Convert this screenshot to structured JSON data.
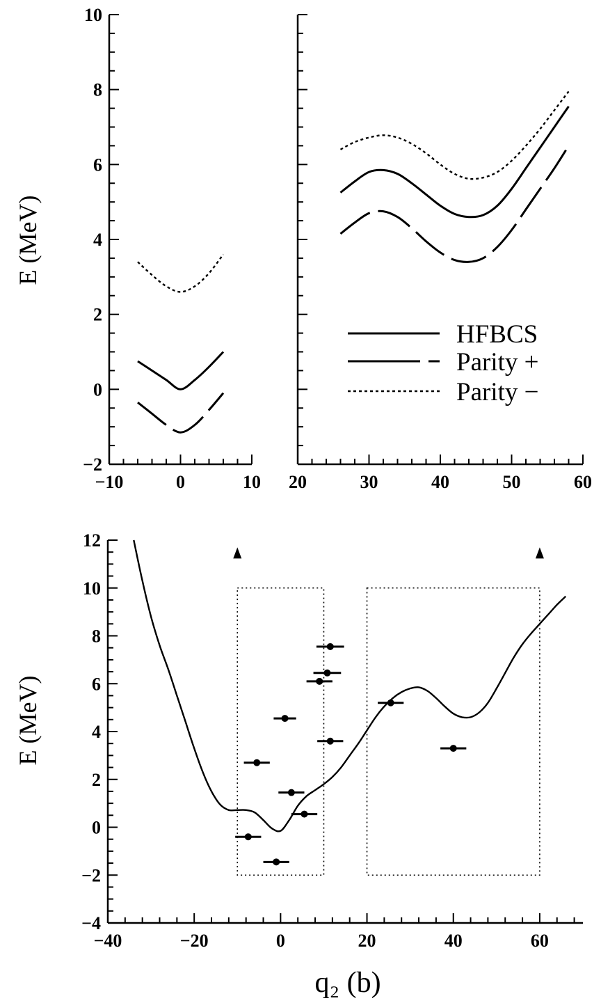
{
  "chart_data": [
    {
      "type": "line",
      "panel": "top-left",
      "ylabel": "E (MeV)",
      "xlim": [
        -10,
        10
      ],
      "ylim": [
        -2,
        10
      ],
      "xticks": [
        -10,
        0,
        10
      ],
      "xtick_labels": [
        "−10",
        "0",
        "10"
      ],
      "yticks": [
        -2,
        0,
        2,
        4,
        6,
        8,
        10
      ],
      "ytick_labels": [
        "−2",
        "0",
        "2",
        "4",
        "6",
        "8",
        "10"
      ],
      "series": [
        {
          "style": "dotted",
          "x": [
            -6,
            -4,
            -2,
            0,
            2,
            4,
            6
          ],
          "y": [
            3.4,
            3.05,
            2.75,
            2.6,
            2.75,
            3.1,
            3.6
          ]
        },
        {
          "style": "solid",
          "x": [
            -6,
            -4,
            -2,
            0,
            2,
            4,
            6
          ],
          "y": [
            0.75,
            0.5,
            0.25,
            0.0,
            0.25,
            0.6,
            1.0
          ]
        },
        {
          "style": "long-dash",
          "x": [
            -6,
            -4,
            -2,
            0,
            2,
            4,
            6
          ],
          "y": [
            -0.35,
            -0.65,
            -0.95,
            -1.15,
            -0.95,
            -0.55,
            -0.1
          ]
        }
      ]
    },
    {
      "type": "line",
      "panel": "top-right",
      "xlim": [
        20,
        60
      ],
      "ylim": [
        -2,
        10
      ],
      "xticks": [
        20,
        30,
        40,
        50,
        60
      ],
      "xtick_labels": [
        "20",
        "30",
        "40",
        "50",
        "60"
      ],
      "yticks": [
        -2,
        0,
        2,
        4,
        6,
        8,
        10
      ],
      "legend": [
        {
          "label": "HFBCS",
          "style": "solid"
        },
        {
          "label": "Parity +",
          "style": "long-dash"
        },
        {
          "label": "Parity −",
          "style": "dotted"
        }
      ],
      "legend_position": "lower-right",
      "series": [
        {
          "style": "dotted",
          "x": [
            26,
            28,
            30,
            32,
            34,
            36,
            38,
            40,
            42,
            44,
            46,
            48,
            50,
            52,
            54,
            56,
            58
          ],
          "y": [
            6.4,
            6.6,
            6.72,
            6.78,
            6.72,
            6.55,
            6.3,
            6.0,
            5.75,
            5.62,
            5.65,
            5.8,
            6.1,
            6.5,
            6.95,
            7.45,
            7.95
          ]
        },
        {
          "style": "solid",
          "x": [
            26,
            28,
            30,
            32,
            34,
            36,
            38,
            40,
            42,
            44,
            46,
            48,
            50,
            52,
            54,
            56,
            58
          ],
          "y": [
            5.25,
            5.55,
            5.8,
            5.85,
            5.75,
            5.5,
            5.2,
            4.9,
            4.68,
            4.6,
            4.65,
            4.9,
            5.35,
            5.9,
            6.45,
            7.0,
            7.55
          ]
        },
        {
          "style": "long-dash",
          "x": [
            26,
            28,
            30,
            32,
            34,
            36,
            38,
            40,
            42,
            44,
            46,
            48,
            50,
            52,
            54,
            56,
            58
          ],
          "y": [
            4.15,
            4.45,
            4.7,
            4.75,
            4.6,
            4.3,
            3.95,
            3.65,
            3.45,
            3.4,
            3.5,
            3.8,
            4.25,
            4.8,
            5.35,
            5.9,
            6.5
          ]
        }
      ]
    },
    {
      "type": "line+scatter",
      "panel": "bottom",
      "xlabel": "q₂ (b)",
      "ylabel": "E (MeV)",
      "xlim": [
        -40,
        70
      ],
      "ylim": [
        -4,
        12
      ],
      "xticks": [
        -40,
        -20,
        0,
        20,
        40,
        60
      ],
      "xtick_labels": [
        "−40",
        "−20",
        "0",
        "20",
        "40",
        "60"
      ],
      "yticks": [
        -4,
        -2,
        0,
        2,
        4,
        6,
        8,
        10,
        12
      ],
      "ytick_labels": [
        "−4",
        "−2",
        "0",
        "2",
        "4",
        "6",
        "8",
        "10",
        "12"
      ],
      "curve": {
        "x": [
          -34,
          -32,
          -30,
          -28,
          -26,
          -24,
          -22,
          -20,
          -18,
          -16,
          -14,
          -12,
          -10,
          -8,
          -6,
          -4,
          -2,
          0,
          2,
          4,
          6,
          8,
          10,
          12,
          14,
          16,
          18,
          20,
          22,
          24,
          26,
          28,
          30,
          32,
          34,
          36,
          38,
          40,
          42,
          44,
          46,
          48,
          50,
          52,
          54,
          56,
          58,
          60,
          62,
          64,
          66
        ],
        "y": [
          12.0,
          10.3,
          8.8,
          7.6,
          6.6,
          5.5,
          4.4,
          3.3,
          2.3,
          1.5,
          0.95,
          0.72,
          0.72,
          0.72,
          0.62,
          0.3,
          -0.05,
          -0.15,
          0.3,
          0.9,
          1.3,
          1.55,
          1.8,
          2.1,
          2.5,
          3.0,
          3.5,
          4.05,
          4.6,
          5.05,
          5.4,
          5.65,
          5.8,
          5.85,
          5.7,
          5.4,
          5.05,
          4.75,
          4.6,
          4.6,
          4.8,
          5.2,
          5.8,
          6.45,
          7.1,
          7.65,
          8.1,
          8.5,
          8.9,
          9.3,
          9.65
        ]
      },
      "points": [
        {
          "x": 11.5,
          "y": 7.55,
          "xerr": 3.2
        },
        {
          "x": 10.8,
          "y": 6.45,
          "xerr": 3.2
        },
        {
          "x": 9.0,
          "y": 6.1,
          "xerr": 3.0
        },
        {
          "x": 1.0,
          "y": 4.55,
          "xerr": 2.6
        },
        {
          "x": 11.5,
          "y": 3.6,
          "xerr": 3.0
        },
        {
          "x": -5.5,
          "y": 2.7,
          "xerr": 3.0
        },
        {
          "x": 2.5,
          "y": 1.45,
          "xerr": 3.0
        },
        {
          "x": 5.5,
          "y": 0.55,
          "xerr": 3.0
        },
        {
          "x": -7.5,
          "y": -0.4,
          "xerr": 3.0
        },
        {
          "x": -1.0,
          "y": -1.45,
          "xerr": 3.0
        },
        {
          "x": 25.5,
          "y": 5.2,
          "xerr": 3.0
        },
        {
          "x": 40.0,
          "y": 3.3,
          "xerr": 3.0
        }
      ],
      "boxes": [
        {
          "x0": -10,
          "x1": 10,
          "y0": -2,
          "y1": 10
        },
        {
          "x0": 20,
          "x1": 60,
          "y0": -2,
          "y1": 10
        }
      ],
      "arrows": [
        {
          "x": -10,
          "y": 11.7
        },
        {
          "x": 60,
          "y": 11.7
        }
      ]
    }
  ]
}
